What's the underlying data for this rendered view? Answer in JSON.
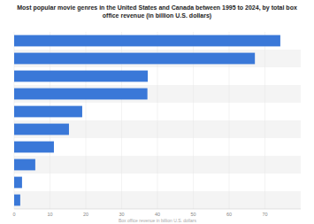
{
  "chart_data": {
    "type": "bar",
    "orientation": "horizontal",
    "title": "Most popular movie genres in the United States and Canada between 1995 to 2024, by total box office revenue (in billion U.S. dollars)",
    "x_label": "Box office revenue in billion U.S. dollars",
    "categories": [
      null,
      null,
      null,
      null,
      null,
      null,
      null,
      null,
      null,
      null
    ],
    "values": [
      74.3,
      67.2,
      37.3,
      37.2,
      19.0,
      15.3,
      11.1,
      5.9,
      2.2,
      1.7
    ],
    "color": "#3a78d8",
    "xlim": [
      0,
      80
    ],
    "xticks": [
      0,
      10,
      20,
      30,
      40,
      50,
      60,
      70
    ],
    "grid": true
  }
}
